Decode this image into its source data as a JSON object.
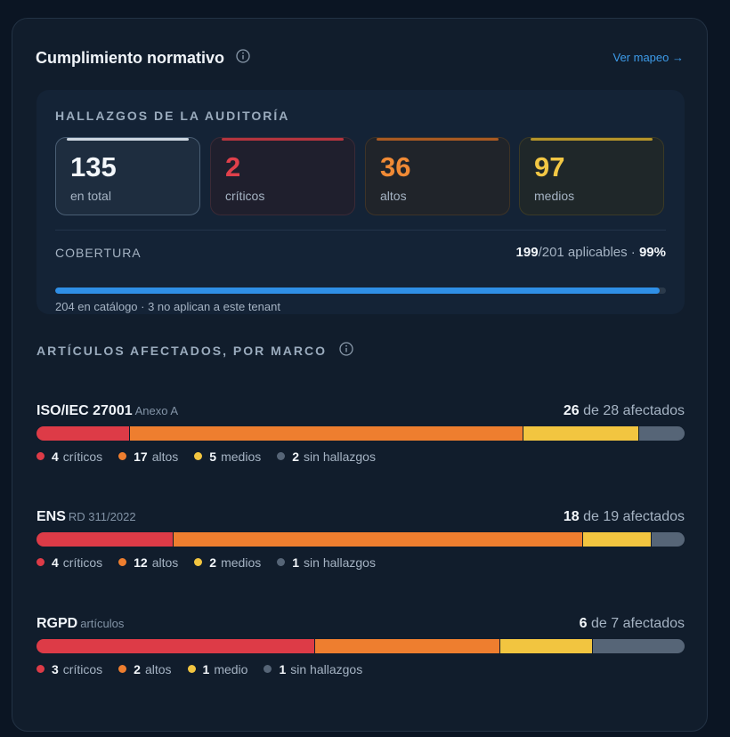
{
  "header": {
    "title": "Cumplimiento normativo",
    "link": "Ver mapeo →"
  },
  "findings": {
    "title": "HALLAZGOS DE LA AUDITORÍA",
    "tiles": [
      {
        "value": "135",
        "label": "en total"
      },
      {
        "value": "2",
        "label": "críticos"
      },
      {
        "value": "36",
        "label": "altos"
      },
      {
        "value": "97",
        "label": "medios"
      }
    ],
    "coverage": {
      "label": "COBERTURA",
      "covered": "199",
      "total_text": "/201 aplicables · ",
      "percent": "99%",
      "fill_percent": 99,
      "note": "204 en catálogo · 3 no aplican a este tenant"
    }
  },
  "section_title": "ARTÍCULOS AFECTADOS, POR MARCO",
  "frameworks": [
    {
      "name": "ISO/IEC 27001",
      "sub": "Anexo A",
      "affected": "26",
      "of_text": "de 28 afectados",
      "segments": {
        "criticos": 4,
        "altos": 17,
        "medios": 5,
        "sin": 2
      },
      "legend": [
        {
          "value": "4",
          "label": "críticos"
        },
        {
          "value": "17",
          "label": "altos"
        },
        {
          "value": "5",
          "label": "medios"
        },
        {
          "value": "2",
          "label": "sin hallazgos"
        }
      ]
    },
    {
      "name": "ENS",
      "sub": "RD 311/2022",
      "affected": "18",
      "of_text": "de 19 afectados",
      "segments": {
        "criticos": 4,
        "altos": 12,
        "medios": 2,
        "sin": 1
      },
      "legend": [
        {
          "value": "4",
          "label": "críticos"
        },
        {
          "value": "12",
          "label": "altos"
        },
        {
          "value": "2",
          "label": "medios"
        },
        {
          "value": "1",
          "label": "sin hallazgos"
        }
      ]
    },
    {
      "name": "RGPD",
      "sub": "artículos",
      "affected": "6",
      "of_text": "de 7 afectados",
      "segments": {
        "criticos": 3,
        "altos": 2,
        "medios": 1,
        "sin": 1
      },
      "legend": [
        {
          "value": "3",
          "label": "críticos"
        },
        {
          "value": "2",
          "label": "altos"
        },
        {
          "value": "1",
          "label": "medio"
        },
        {
          "value": "1",
          "label": "sin hallazgos"
        }
      ]
    }
  ],
  "colors": {
    "critico": "#dd3b47",
    "alto": "#ee7e2f",
    "medio": "#f2c540",
    "sin": "#566577",
    "accent": "#3d9be9",
    "coverage": "#2f8fe6"
  }
}
